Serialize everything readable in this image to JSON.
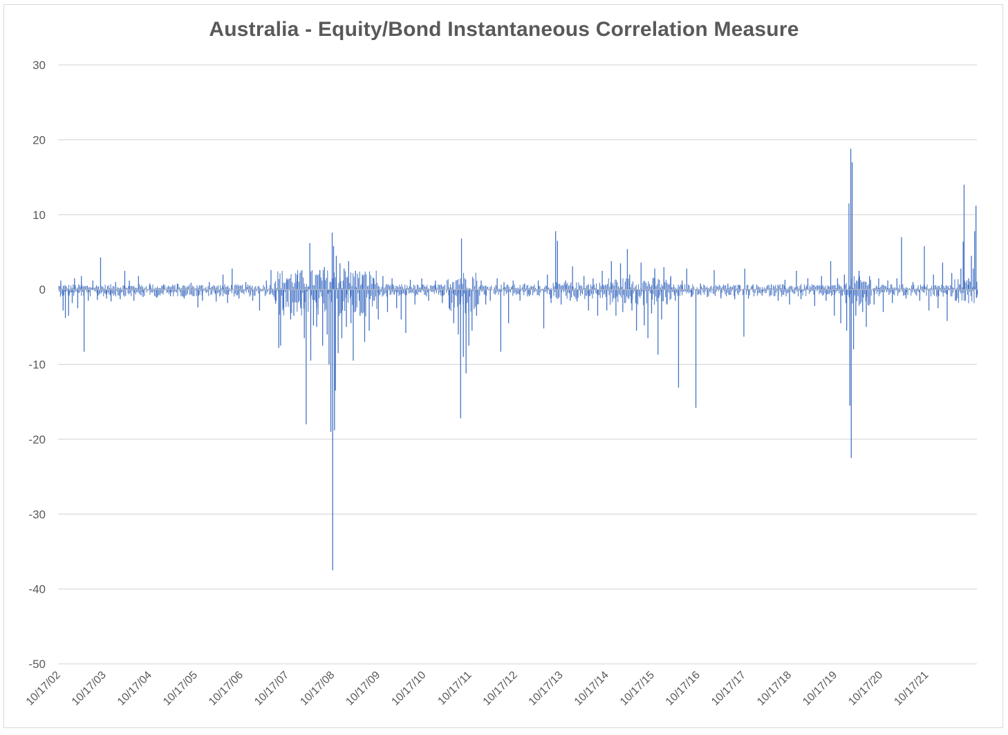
{
  "chart_data": {
    "type": "bar",
    "title": "Australia - Equity/Bond Instantaneous Correlation Measure",
    "xlabel": "",
    "ylabel": "",
    "ylim": [
      -50,
      30
    ],
    "yticks": [
      30,
      20,
      10,
      0,
      -10,
      -20,
      -30,
      -40,
      -50
    ],
    "grid": true,
    "legend": "none",
    "bar_color": "#4472c4",
    "grid_color": "#d9d9d9",
    "x_range": [
      2002.79,
      2022.9
    ],
    "categories": [
      "10/17/02",
      "10/17/03",
      "10/17/04",
      "10/17/05",
      "10/17/06",
      "10/17/07",
      "10/17/08",
      "10/17/09",
      "10/17/10",
      "10/17/11",
      "10/17/12",
      "10/17/13",
      "10/17/14",
      "10/17/15",
      "10/17/16",
      "10/17/17",
      "10/17/18",
      "10/17/19",
      "10/17/20",
      "10/17/21"
    ],
    "category_x": [
      2002.79,
      2003.79,
      2004.79,
      2005.79,
      2006.79,
      2007.79,
      2008.79,
      2009.79,
      2010.79,
      2011.79,
      2012.79,
      2013.79,
      2014.79,
      2015.79,
      2016.79,
      2017.79,
      2018.79,
      2019.79,
      2020.79,
      2021.79
    ],
    "series": [
      {
        "name": "Instantaneous Correlation Measure",
        "points": [
          [
            2002.85,
            1.2
          ],
          [
            2002.9,
            -2.8
          ],
          [
            2002.95,
            -3.8
          ],
          [
            2003.02,
            -3.5
          ],
          [
            2003.1,
            -1.8
          ],
          [
            2003.15,
            1.5
          ],
          [
            2003.22,
            -2.5
          ],
          [
            2003.3,
            1.8
          ],
          [
            2003.36,
            -8.3
          ],
          [
            2003.45,
            -1.5
          ],
          [
            2003.55,
            1.2
          ],
          [
            2003.65,
            -1.4
          ],
          [
            2003.72,
            4.3
          ],
          [
            2003.85,
            -1.2
          ],
          [
            2003.95,
            -1.6
          ],
          [
            2004.05,
            1.0
          ],
          [
            2004.15,
            -1.3
          ],
          [
            2004.25,
            2.5
          ],
          [
            2004.35,
            1.2
          ],
          [
            2004.45,
            -1.5
          ],
          [
            2004.55,
            1.8
          ],
          [
            2004.65,
            -1.0
          ],
          [
            2004.8,
            0.8
          ],
          [
            2004.95,
            -1.1
          ],
          [
            2005.1,
            0.7
          ],
          [
            2005.25,
            -0.9
          ],
          [
            2005.4,
            0.8
          ],
          [
            2005.55,
            -1.2
          ],
          [
            2005.7,
            0.9
          ],
          [
            2005.85,
            -2.4
          ],
          [
            2005.95,
            -1.5
          ],
          [
            2006.1,
            1.0
          ],
          [
            2006.25,
            -1.6
          ],
          [
            2006.4,
            2.0
          ],
          [
            2006.5,
            -1.8
          ],
          [
            2006.6,
            2.8
          ],
          [
            2006.75,
            -1.2
          ],
          [
            2006.9,
            1.0
          ],
          [
            2007.05,
            -1.5
          ],
          [
            2007.2,
            -2.8
          ],
          [
            2007.35,
            1.2
          ],
          [
            2007.45,
            2.6
          ],
          [
            2007.55,
            -1.9
          ],
          [
            2007.62,
            -7.8
          ],
          [
            2007.66,
            -7.5
          ],
          [
            2007.72,
            -2.5
          ],
          [
            2007.8,
            1.5
          ],
          [
            2007.88,
            -4.0
          ],
          [
            2007.95,
            -3.5
          ],
          [
            2008.02,
            2.0
          ],
          [
            2008.1,
            -2.5
          ],
          [
            2008.18,
            -6.5
          ],
          [
            2008.22,
            -18.0
          ],
          [
            2008.3,
            6.2
          ],
          [
            2008.32,
            -9.5
          ],
          [
            2008.38,
            -4.8
          ],
          [
            2008.45,
            -5.0
          ],
          [
            2008.52,
            2.6
          ],
          [
            2008.58,
            -7.5
          ],
          [
            2008.62,
            3.0
          ],
          [
            2008.68,
            -6.0
          ],
          [
            2008.72,
            -10.0
          ],
          [
            2008.76,
            -19.0
          ],
          [
            2008.79,
            7.6
          ],
          [
            2008.8,
            -37.5
          ],
          [
            2008.82,
            5.8
          ],
          [
            2008.84,
            -18.8
          ],
          [
            2008.86,
            -13.5
          ],
          [
            2008.88,
            4.5
          ],
          [
            2008.92,
            -8.5
          ],
          [
            2008.96,
            3.5
          ],
          [
            2009.0,
            -6.5
          ],
          [
            2009.05,
            2.8
          ],
          [
            2009.1,
            -5.0
          ],
          [
            2009.15,
            3.8
          ],
          [
            2009.2,
            -4.5
          ],
          [
            2009.25,
            -9.5
          ],
          [
            2009.3,
            2.5
          ],
          [
            2009.4,
            -3.5
          ],
          [
            2009.45,
            2.0
          ],
          [
            2009.5,
            -7.0
          ],
          [
            2009.6,
            -5.5
          ],
          [
            2009.7,
            1.5
          ],
          [
            2009.8,
            -4.0
          ],
          [
            2009.9,
            1.8
          ],
          [
            2010.0,
            -3.0
          ],
          [
            2010.1,
            1.5
          ],
          [
            2010.2,
            -2.5
          ],
          [
            2010.3,
            -4.0
          ],
          [
            2010.4,
            -5.8
          ],
          [
            2010.5,
            1.3
          ],
          [
            2010.6,
            -2.0
          ],
          [
            2010.75,
            1.5
          ],
          [
            2010.9,
            -1.5
          ],
          [
            2011.05,
            1.2
          ],
          [
            2011.2,
            -1.8
          ],
          [
            2011.35,
            -2.5
          ],
          [
            2011.45,
            -4.5
          ],
          [
            2011.55,
            -6.0
          ],
          [
            2011.6,
            -17.2
          ],
          [
            2011.62,
            6.8
          ],
          [
            2011.66,
            -9.0
          ],
          [
            2011.72,
            -11.2
          ],
          [
            2011.78,
            -7.5
          ],
          [
            2011.85,
            -5.5
          ],
          [
            2011.95,
            -3.5
          ],
          [
            2012.05,
            1.2
          ],
          [
            2012.15,
            -2.0
          ],
          [
            2012.25,
            -1.5
          ],
          [
            2012.4,
            1.5
          ],
          [
            2012.48,
            -8.3
          ],
          [
            2012.55,
            1.0
          ],
          [
            2012.65,
            -4.5
          ],
          [
            2012.75,
            1.2
          ],
          [
            2012.9,
            -1.5
          ],
          [
            2013.0,
            0.8
          ],
          [
            2013.1,
            -0.9
          ],
          [
            2013.3,
            1.2
          ],
          [
            2013.42,
            -5.2
          ],
          [
            2013.5,
            2.0
          ],
          [
            2013.58,
            -1.8
          ],
          [
            2013.68,
            7.8
          ],
          [
            2013.72,
            6.5
          ],
          [
            2013.8,
            -2.0
          ],
          [
            2013.9,
            1.2
          ],
          [
            2014.0,
            -1.5
          ],
          [
            2014.05,
            3.1
          ],
          [
            2014.15,
            -1.6
          ],
          [
            2014.3,
            1.8
          ],
          [
            2014.4,
            -2.8
          ],
          [
            2014.5,
            1.5
          ],
          [
            2014.6,
            -3.5
          ],
          [
            2014.7,
            2.5
          ],
          [
            2014.8,
            -2.8
          ],
          [
            2014.9,
            3.8
          ],
          [
            2015.0,
            -3.5
          ],
          [
            2015.1,
            3.5
          ],
          [
            2015.15,
            -3.0
          ],
          [
            2015.25,
            5.4
          ],
          [
            2015.3,
            2.0
          ],
          [
            2015.35,
            -2.8
          ],
          [
            2015.45,
            -5.5
          ],
          [
            2015.55,
            3.6
          ],
          [
            2015.62,
            -4.8
          ],
          [
            2015.7,
            -6.5
          ],
          [
            2015.78,
            -3.2
          ],
          [
            2015.85,
            2.8
          ],
          [
            2015.92,
            -8.7
          ],
          [
            2016.0,
            -4.0
          ],
          [
            2016.05,
            3.0
          ],
          [
            2016.12,
            -2.0
          ],
          [
            2016.2,
            1.8
          ],
          [
            2016.3,
            -1.5
          ],
          [
            2016.37,
            -13.1
          ],
          [
            2016.45,
            1.2
          ],
          [
            2016.55,
            2.8
          ],
          [
            2016.65,
            -1.0
          ],
          [
            2016.75,
            -15.8
          ],
          [
            2016.85,
            0.8
          ],
          [
            2017.0,
            -1.0
          ],
          [
            2017.15,
            2.6
          ],
          [
            2017.3,
            -1.2
          ],
          [
            2017.45,
            0.8
          ],
          [
            2017.6,
            -1.3
          ],
          [
            2017.7,
            0.6
          ],
          [
            2017.8,
            -6.3
          ],
          [
            2017.82,
            2.8
          ],
          [
            2017.9,
            -1.2
          ],
          [
            2018.0,
            0.7
          ],
          [
            2018.2,
            -0.8
          ],
          [
            2018.4,
            0.7
          ],
          [
            2018.55,
            -1.5
          ],
          [
            2018.7,
            1.3
          ],
          [
            2018.8,
            -2.0
          ],
          [
            2018.95,
            2.5
          ],
          [
            2019.05,
            -1.3
          ],
          [
            2019.2,
            1.5
          ],
          [
            2019.35,
            -2.2
          ],
          [
            2019.5,
            1.8
          ],
          [
            2019.6,
            -1.5
          ],
          [
            2019.7,
            3.8
          ],
          [
            2019.78,
            -3.5
          ],
          [
            2019.85,
            1.5
          ],
          [
            2019.92,
            -4.5
          ],
          [
            2020.0,
            2.0
          ],
          [
            2020.05,
            -5.5
          ],
          [
            2020.1,
            11.5
          ],
          [
            2020.12,
            -15.5
          ],
          [
            2020.14,
            18.8
          ],
          [
            2020.15,
            -22.5
          ],
          [
            2020.17,
            17.0
          ],
          [
            2020.2,
            -8.0
          ],
          [
            2020.25,
            -3.5
          ],
          [
            2020.32,
            2.5
          ],
          [
            2020.4,
            -3.0
          ],
          [
            2020.48,
            -5.0
          ],
          [
            2020.55,
            1.8
          ],
          [
            2020.65,
            -2.0
          ],
          [
            2020.75,
            1.5
          ],
          [
            2020.85,
            -3.0
          ],
          [
            2020.95,
            1.2
          ],
          [
            2021.05,
            -1.8
          ],
          [
            2021.15,
            1.5
          ],
          [
            2021.25,
            7.0
          ],
          [
            2021.35,
            -1.2
          ],
          [
            2021.5,
            1.0
          ],
          [
            2021.65,
            -1.5
          ],
          [
            2021.75,
            5.8
          ],
          [
            2021.85,
            -2.8
          ],
          [
            2021.95,
            2.0
          ],
          [
            2022.05,
            -2.5
          ],
          [
            2022.15,
            3.6
          ],
          [
            2022.25,
            -4.2
          ],
          [
            2022.35,
            2.2
          ],
          [
            2022.45,
            -1.5
          ],
          [
            2022.55,
            2.8
          ],
          [
            2022.6,
            6.4
          ],
          [
            2022.62,
            14.0
          ],
          [
            2022.65,
            -1.5
          ],
          [
            2022.72,
            1.5
          ],
          [
            2022.78,
            4.5
          ],
          [
            2022.82,
            2.8
          ],
          [
            2022.85,
            7.8
          ],
          [
            2022.88,
            11.2
          ],
          [
            2022.9,
            -1.0
          ]
        ]
      }
    ]
  }
}
